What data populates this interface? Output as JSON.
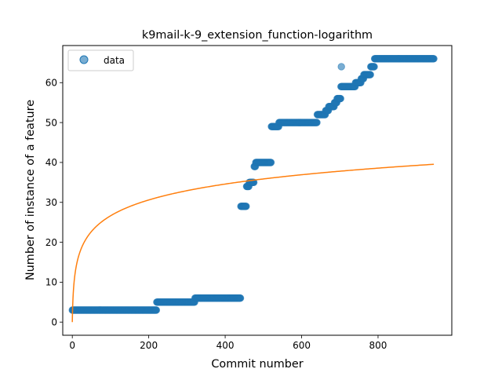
{
  "chart_data": {
    "type": "scatter",
    "title": "k9mail-k-9_extension_function-logarithm",
    "xlabel": "Commit number",
    "ylabel": "Number of instance of a feature",
    "xlim": [
      -25,
      993
    ],
    "ylim": [
      -3.3,
      69.3
    ],
    "xticks": [
      0,
      200,
      400,
      600,
      800
    ],
    "yticks": [
      0,
      10,
      20,
      30,
      40,
      50,
      60
    ],
    "grid": false,
    "legend": {
      "placement": "upper left",
      "entries": [
        "data"
      ]
    },
    "colors": {
      "data": "#1f77b4",
      "fit": "#ff7f0e"
    },
    "series": [
      {
        "name": "data",
        "kind": "scatter",
        "steps": [
          {
            "x_start": 0,
            "x_end": 220,
            "y": 3
          },
          {
            "x_start": 221,
            "x_end": 320,
            "y": 5
          },
          {
            "x_start": 321,
            "x_end": 440,
            "y": 6
          },
          {
            "x_start": 441,
            "x_end": 455,
            "y": 29
          },
          {
            "x_start": 456,
            "x_end": 462,
            "y": 34
          },
          {
            "x_start": 463,
            "x_end": 475,
            "y": 35
          },
          {
            "x_start": 476,
            "x_end": 479,
            "y": 39
          },
          {
            "x_start": 480,
            "x_end": 520,
            "y": 40
          },
          {
            "x_start": 521,
            "x_end": 540,
            "y": 49
          },
          {
            "x_start": 541,
            "x_end": 640,
            "y": 50
          },
          {
            "x_start": 641,
            "x_end": 662,
            "y": 52
          },
          {
            "x_start": 663,
            "x_end": 670,
            "y": 53
          },
          {
            "x_start": 671,
            "x_end": 685,
            "y": 54
          },
          {
            "x_start": 686,
            "x_end": 692,
            "y": 55
          },
          {
            "x_start": 693,
            "x_end": 702,
            "y": 56
          },
          {
            "x_start": 703,
            "x_end": 740,
            "y": 59
          },
          {
            "x_start": 741,
            "x_end": 755,
            "y": 60
          },
          {
            "x_start": 756,
            "x_end": 762,
            "y": 61
          },
          {
            "x_start": 763,
            "x_end": 780,
            "y": 62
          },
          {
            "x_start": 781,
            "x_end": 790,
            "y": 64
          },
          {
            "x_start": 791,
            "x_end": 946,
            "y": 66
          }
        ],
        "outliers": [
          {
            "x": 704,
            "y": 64
          }
        ]
      },
      {
        "kind": "line",
        "function": "a*ln(x+1)",
        "a": 5.77,
        "x_range": [
          0,
          946
        ]
      }
    ]
  }
}
